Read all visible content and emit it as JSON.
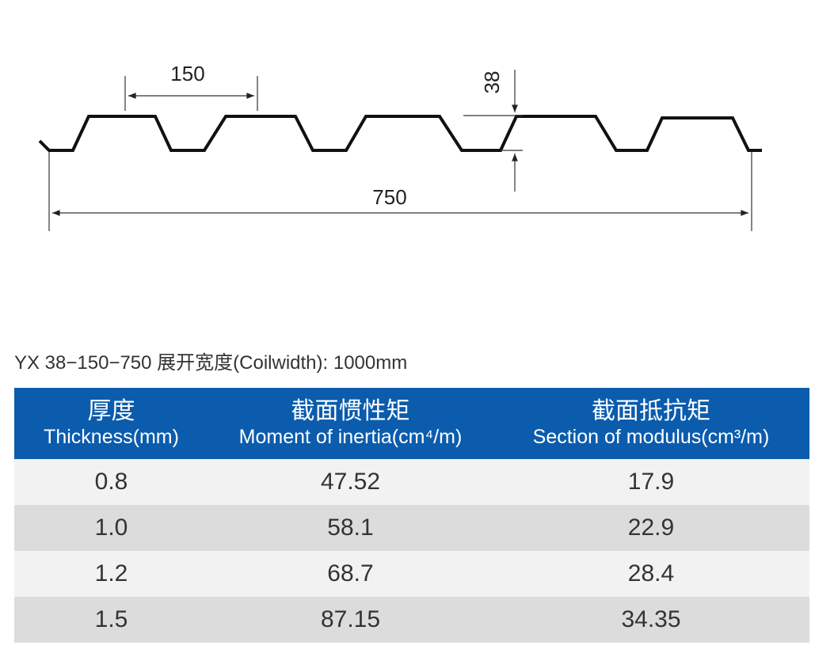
{
  "diagram": {
    "pitch_label": "150",
    "height_label": "38",
    "width_label": "750"
  },
  "caption": "YX 38−150−750  展开宽度(Coilwidth): 1000mm",
  "table": {
    "headers": [
      {
        "zh": "厚度",
        "en": "Thickness(mm)"
      },
      {
        "zh": "截面惯性矩",
        "en": "Moment of inertia(cm⁴/m)"
      },
      {
        "zh": "截面抵抗矩",
        "en": "Section of modulus(cm³/m)"
      }
    ],
    "rows": [
      [
        "0.8",
        "47.52",
        "17.9"
      ],
      [
        "1.0",
        "58.1",
        "22.9"
      ],
      [
        "1.2",
        "68.7",
        "28.4"
      ],
      [
        "1.5",
        "87.15",
        "34.35"
      ]
    ]
  }
}
